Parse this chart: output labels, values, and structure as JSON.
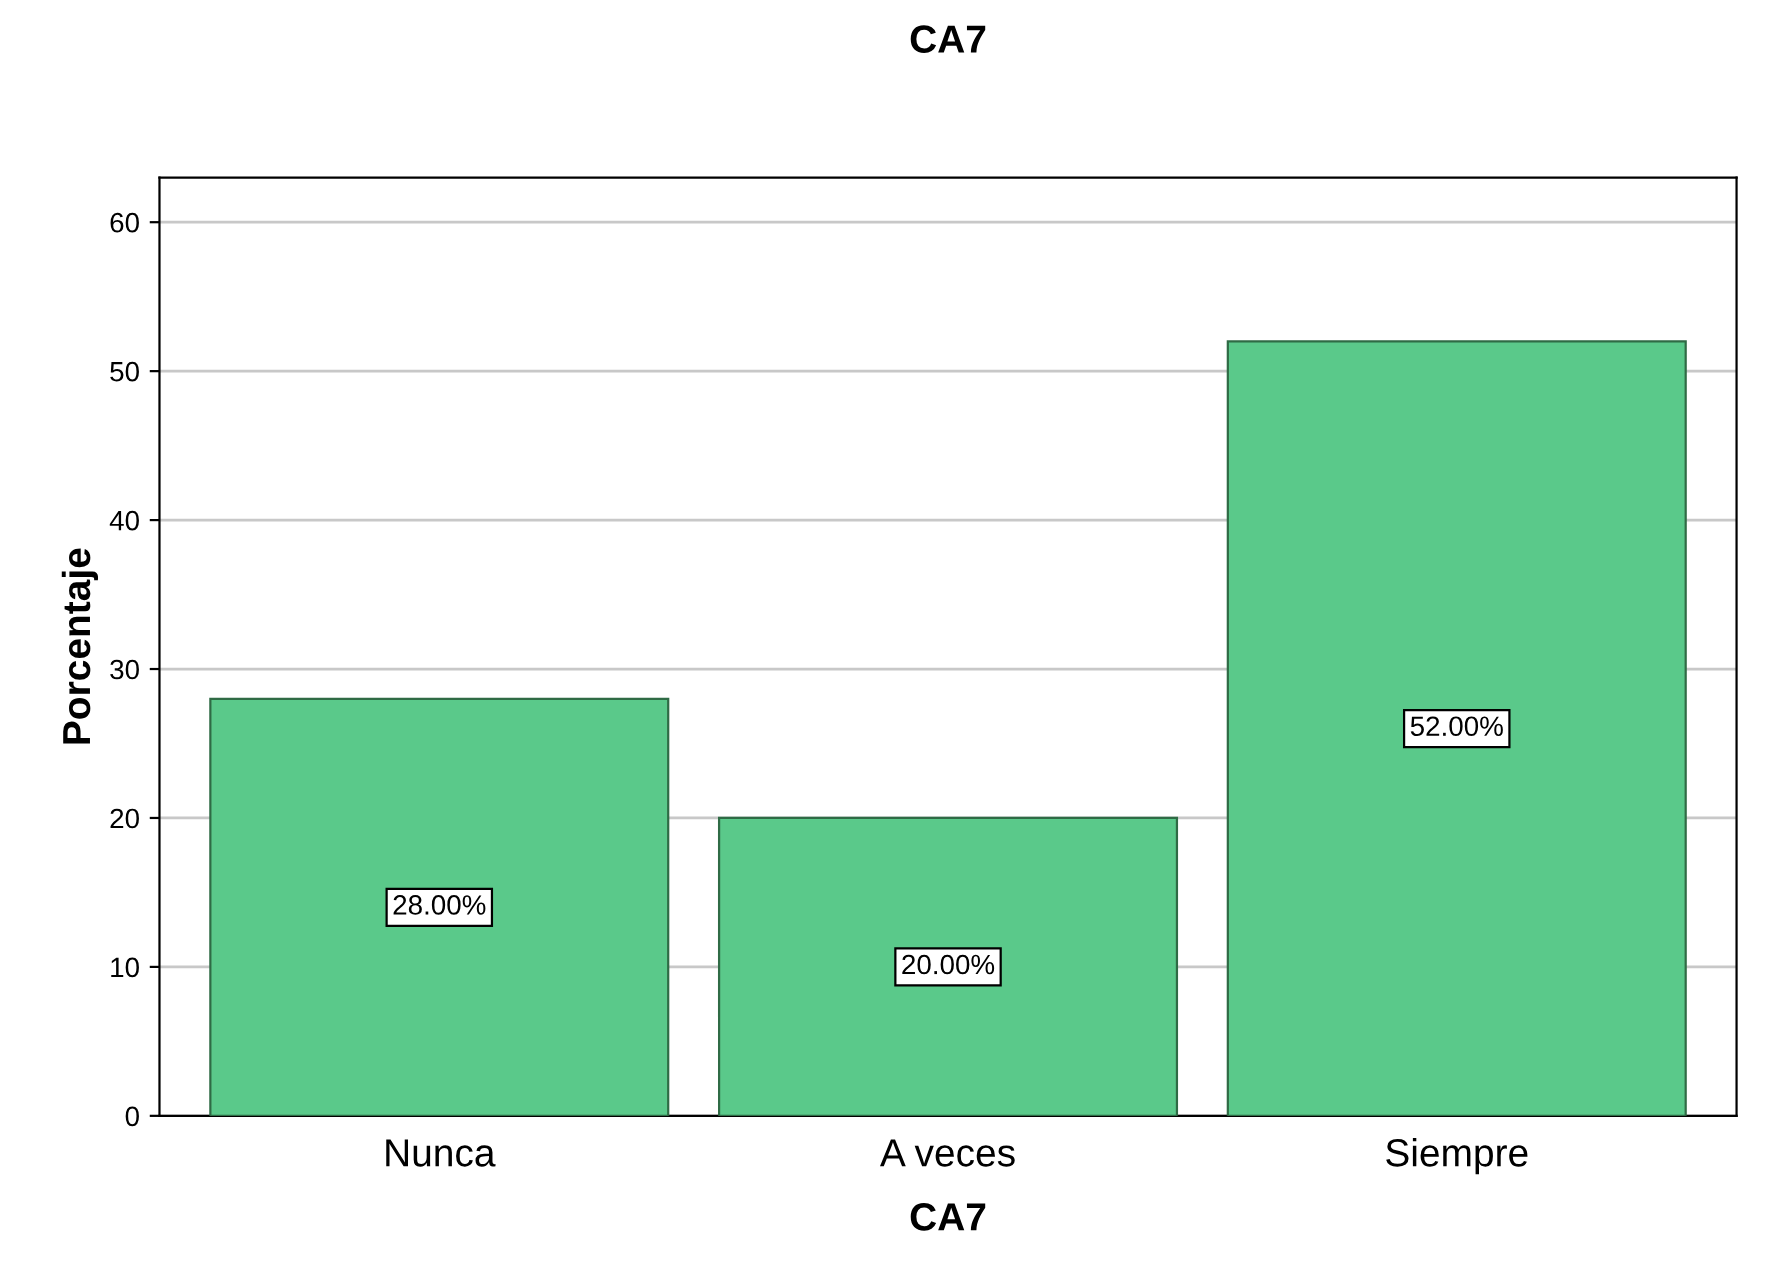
{
  "chart_data": {
    "type": "bar",
    "title": "CA7",
    "xlabel": "CA7",
    "ylabel": "Porcentaje",
    "categories": [
      "Nunca",
      "A veces",
      "Siempre"
    ],
    "values": [
      28,
      20,
      52
    ],
    "value_labels": [
      "28.00%",
      "20.00%",
      "52.00%"
    ],
    "color": "#5ac98a",
    "ylim": [
      0,
      63
    ],
    "yticks": [
      0,
      10,
      20,
      30,
      40,
      50,
      60
    ],
    "grid": "y"
  }
}
